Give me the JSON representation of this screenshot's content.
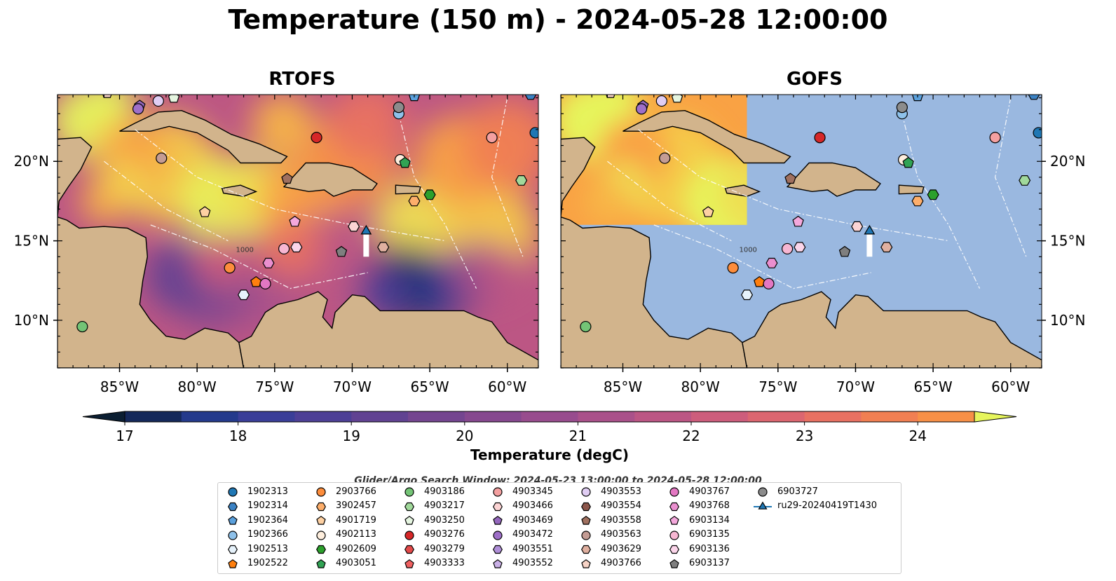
{
  "title": "Temperature (150 m) - 2024-05-28 12:00:00",
  "panels": [
    {
      "name": "RTOFS"
    },
    {
      "name": "GOFS"
    }
  ],
  "colors": {
    "land": "#d2b48c",
    "ocean": "#9ab8e0",
    "scale": [
      "#0b1e32",
      "#14285a",
      "#243a8c",
      "#3a3e98",
      "#4d3f96",
      "#614292",
      "#744590",
      "#86488f",
      "#984c8e",
      "#aa518a",
      "#bc5684",
      "#cd5d7c",
      "#dc6670",
      "#e87162",
      "#f17f52",
      "#f79047",
      "#f9a244",
      "#f8b646",
      "#f5ca4a",
      "#eedf52",
      "#e6f55c"
    ]
  },
  "chart_data": {
    "type": "heatmap",
    "title": "Temperature (150 m) - 2024-05-28 12:00:00",
    "colorbar": {
      "label": "Temperature (degC)",
      "min": 17,
      "max": 24.5,
      "ticks": [
        17,
        18,
        19,
        20,
        21,
        22,
        23,
        24
      ],
      "extend": "both"
    },
    "extent": {
      "lon": [
        -89,
        -58
      ],
      "lat": [
        7,
        24.2
      ]
    },
    "lon_ticks": [
      {
        "value": -85,
        "label": "85°W"
      },
      {
        "value": -80,
        "label": "80°W"
      },
      {
        "value": -75,
        "label": "75°W"
      },
      {
        "value": -70,
        "label": "70°W"
      },
      {
        "value": -65,
        "label": "65°W"
      },
      {
        "value": -60,
        "label": "60°W"
      }
    ],
    "lat_ticks": [
      {
        "value": 10,
        "label": "10°N"
      },
      {
        "value": 15,
        "label": "15°N"
      },
      {
        "value": 20,
        "label": "20°N"
      }
    ],
    "search_window": "Glider/Argo Search Window: 2024-05-23 13:00:00 to 2024-05-28 12:00:00",
    "contour_label": "1000",
    "legend_position": "bottom",
    "floats": [
      {
        "id": "1902313",
        "marker": "circle",
        "color": "#1f77b4",
        "lon": -58.2,
        "lat": 21.8
      },
      {
        "id": "1902314",
        "marker": "hexagon",
        "color": "#3b82c4",
        "lon": -58.5,
        "lat": 24.2
      },
      {
        "id": "1902364",
        "marker": "pentagon",
        "color": "#5aa0dc",
        "lon": -66.0,
        "lat": 24.1
      },
      {
        "id": "1902366",
        "marker": "circle",
        "color": "#8ec1ea",
        "lon": -67.0,
        "lat": 23.0
      },
      {
        "id": "1902513",
        "marker": "hexagon",
        "color": "#e6f2fb",
        "lon": -77.0,
        "lat": 11.6
      },
      {
        "id": "1902522",
        "marker": "pentagon",
        "color": "#ff7f0e",
        "lon": -76.2,
        "lat": 12.4
      },
      {
        "id": "2903766",
        "marker": "circle",
        "color": "#fd8d3c",
        "lon": -77.9,
        "lat": 13.3
      },
      {
        "id": "3902457",
        "marker": "hexagon",
        "color": "#fdae6b",
        "lon": -66.0,
        "lat": 17.5
      },
      {
        "id": "4901719",
        "marker": "pentagon",
        "color": "#fdd0a2",
        "lon": -79.5,
        "lat": 16.8
      },
      {
        "id": "4902113",
        "marker": "circle",
        "color": "#feeedd",
        "lon": -66.9,
        "lat": 20.1
      },
      {
        "id": "4902609",
        "marker": "hexagon",
        "color": "#2ca02c",
        "lon": -65.0,
        "lat": 17.9
      },
      {
        "id": "4903051",
        "marker": "pentagon",
        "color": "#31a354",
        "lon": -66.6,
        "lat": 19.9
      },
      {
        "id": "4903186",
        "marker": "circle",
        "color": "#74c476",
        "lon": -87.4,
        "lat": 9.6
      },
      {
        "id": "4903217",
        "marker": "hexagon",
        "color": "#a1d99b",
        "lon": -59.1,
        "lat": 18.8
      },
      {
        "id": "4903250",
        "marker": "pentagon",
        "color": "#e5f5e0",
        "lon": -81.5,
        "lat": 24.0
      },
      {
        "id": "4903276",
        "marker": "circle",
        "color": "#d62728",
        "lon": -72.3,
        "lat": 21.5
      },
      {
        "id": "4903279",
        "marker": "hexagon",
        "color": "#e34a4a",
        "lon": -84.5,
        "lat": 25.0
      },
      {
        "id": "4903333",
        "marker": "pentagon",
        "color": "#f06060",
        "lon": -84.0,
        "lat": 25.0
      },
      {
        "id": "4903345",
        "marker": "circle",
        "color": "#f4a0a0",
        "lon": -61.0,
        "lat": 21.5
      },
      {
        "id": "4903466",
        "marker": "hexagon",
        "color": "#fcd4d4",
        "lon": -69.9,
        "lat": 15.9
      },
      {
        "id": "4903469",
        "marker": "pentagon",
        "color": "#9467bd",
        "lon": -83.7,
        "lat": 23.5
      },
      {
        "id": "4903472",
        "marker": "circle",
        "color": "#9e6fc8",
        "lon": -83.8,
        "lat": 23.3
      },
      {
        "id": "4903551",
        "marker": "hexagon",
        "color": "#b08fd8",
        "lon": -83.0,
        "lat": 25.0
      },
      {
        "id": "4903552",
        "marker": "pentagon",
        "color": "#c9b0e6",
        "lon": -82.5,
        "lat": 25.0
      },
      {
        "id": "4903553",
        "marker": "circle",
        "color": "#e0cdf3",
        "lon": -82.5,
        "lat": 23.8
      },
      {
        "id": "4903554",
        "marker": "hexagon",
        "color": "#8c564b",
        "lon": -81.0,
        "lat": 25.0
      },
      {
        "id": "4903558",
        "marker": "pentagon",
        "color": "#a0705f",
        "lon": -74.2,
        "lat": 18.9
      },
      {
        "id": "4903563",
        "marker": "circle",
        "color": "#c49c94",
        "lon": -82.3,
        "lat": 20.2
      },
      {
        "id": "4903629",
        "marker": "hexagon",
        "color": "#e0b0a0",
        "lon": -68.0,
        "lat": 14.6
      },
      {
        "id": "4903766",
        "marker": "pentagon",
        "color": "#f7d3c6",
        "lon": -85.8,
        "lat": 24.3
      },
      {
        "id": "4903767",
        "marker": "circle",
        "color": "#e377c2",
        "lon": -75.6,
        "lat": 12.3
      },
      {
        "id": "4903768",
        "marker": "hexagon",
        "color": "#ea8fcf",
        "lon": -75.4,
        "lat": 13.6
      },
      {
        "id": "6903134",
        "marker": "pentagon",
        "color": "#f4a8dc",
        "lon": -73.7,
        "lat": 16.2
      },
      {
        "id": "6903135",
        "marker": "circle",
        "color": "#f7b6d2",
        "lon": -74.4,
        "lat": 14.5
      },
      {
        "id": "6903136",
        "marker": "hexagon",
        "color": "#fbd5ea",
        "lon": -73.6,
        "lat": 14.6
      },
      {
        "id": "6903137",
        "marker": "pentagon",
        "color": "#7f7f7f",
        "lon": -70.7,
        "lat": 14.3
      },
      {
        "id": "6903727",
        "marker": "circle",
        "color": "#8c8c8c",
        "lon": -67.0,
        "lat": 23.4
      },
      {
        "id": "ru29-20240419T1430",
        "marker": "triangle",
        "color": "#1f77b4",
        "lon": -69.1,
        "lat": 15.6
      }
    ],
    "glider_track": {
      "lon": -69.1,
      "lat_start": 15.6,
      "lat_end": 14.0
    }
  }
}
